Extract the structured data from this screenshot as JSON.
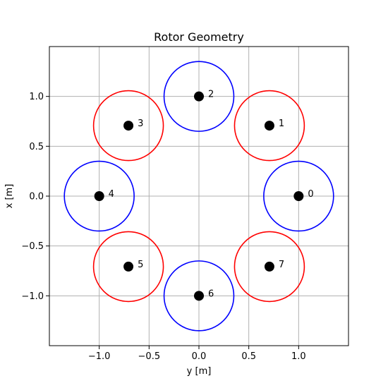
{
  "chart_data": {
    "type": "scatter",
    "title": "Rotor Geometry",
    "xlabel": "y [m]",
    "ylabel": "x [m]",
    "xlim": [
      -1.5,
      1.5
    ],
    "ylim": [
      -1.5,
      1.5
    ],
    "grid": true,
    "xticks": [
      -1.0,
      -0.5,
      0.0,
      0.5,
      1.0
    ],
    "yticks": [
      -1.0,
      -0.5,
      0.0,
      0.5,
      1.0
    ],
    "xtick_labels": [
      "−1.0",
      "−0.5",
      "0.0",
      "0.5",
      "1.0"
    ],
    "ytick_labels": [
      "−1.0",
      "−0.5",
      "0.0",
      "0.5",
      "1.0"
    ],
    "rotor_radius": 0.35,
    "colors": {
      "cw": "#0000ff",
      "ccw": "#ff0000",
      "center": "#000000",
      "grid": "#b0b0b0"
    },
    "rotors": [
      {
        "label": "0",
        "y": 1.0,
        "x": 0.0,
        "color": "#0000ff"
      },
      {
        "label": "1",
        "y": 0.707,
        "x": 0.707,
        "color": "#ff0000"
      },
      {
        "label": "2",
        "y": 0.0,
        "x": 1.0,
        "color": "#0000ff"
      },
      {
        "label": "3",
        "y": -0.707,
        "x": 0.707,
        "color": "#ff0000"
      },
      {
        "label": "4",
        "y": -1.0,
        "x": 0.0,
        "color": "#0000ff"
      },
      {
        "label": "5",
        "y": -0.707,
        "x": -0.707,
        "color": "#ff0000"
      },
      {
        "label": "6",
        "y": 0.0,
        "x": -1.0,
        "color": "#0000ff"
      },
      {
        "label": "7",
        "y": 0.707,
        "x": -0.707,
        "color": "#ff0000"
      }
    ]
  }
}
